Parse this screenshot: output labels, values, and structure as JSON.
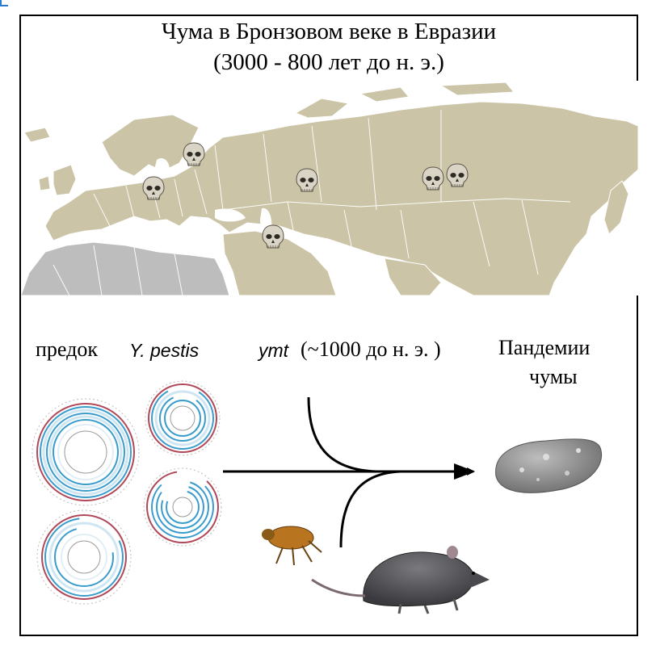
{
  "title": {
    "line1": "Чума в Бронзовом веке в Евразии",
    "line2": "(3000 - 800 лет до н. э.)"
  },
  "map": {
    "land_color": "#cbc4a6",
    "africa_color": "#bdbdbd",
    "skull_icon": "skull-icon",
    "skull_count": 6
  },
  "labels": {
    "ancestor_word": "предок",
    "ancestor_species": "Y. pestis",
    "ymt_gene": "ymt",
    "ymt_date": "(~1000 до н. э. )",
    "pandemics_line1": "Пандемии",
    "pandemics_line2": "чумы"
  },
  "figure": {
    "genome_plot_count": 4,
    "icons": [
      "genome-circle-plot",
      "flea-icon",
      "rat-icon",
      "bacterium-icon",
      "arrow-icon"
    ],
    "ring_color": "#3a9ccc",
    "bacterium_color": "#8a8a8a"
  }
}
